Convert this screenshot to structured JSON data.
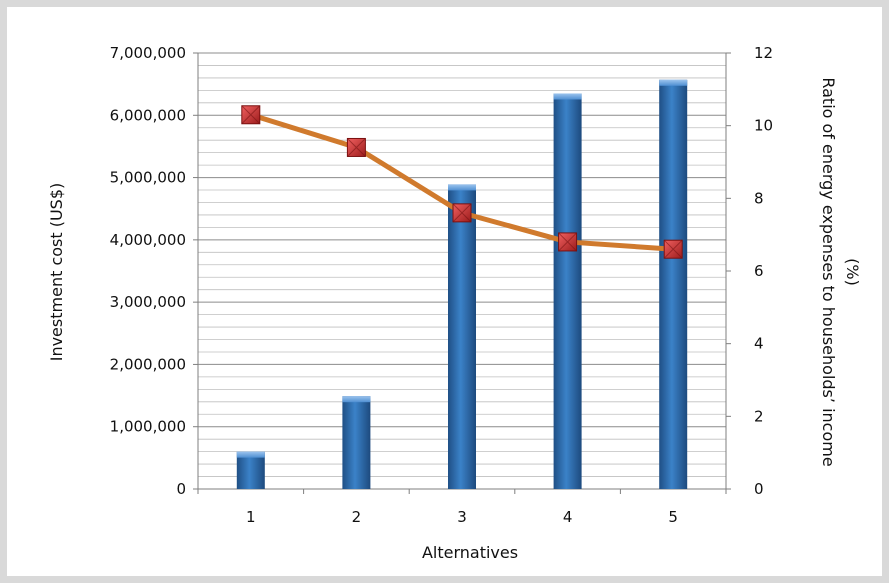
{
  "chart_data": {
    "type": "bar+line",
    "categories": [
      "1",
      "2",
      "3",
      "4",
      "5"
    ],
    "xlabel": "Alternatives",
    "ylabel": "Investment cost (US$)",
    "y2label_line1": "Ratio of energy expenses to households’ income",
    "y2label_line2": "(%)",
    "ylim": [
      0,
      7000000
    ],
    "y2lim": [
      0,
      12
    ],
    "yticks": [
      "0",
      "1,000,000",
      "2,000,000",
      "3,000,000",
      "4,000,000",
      "5,000,000",
      "6,000,000",
      "7,000,000"
    ],
    "y2ticks": [
      "0",
      "2",
      "4",
      "6",
      "8",
      "10",
      "12"
    ],
    "grid": true,
    "series": [
      {
        "type": "bar",
        "axis": "left",
        "values": [
          600000,
          1490000,
          4890000,
          6350000,
          6570000
        ],
        "color": "#2f6fb0"
      },
      {
        "type": "line",
        "axis": "right",
        "values": [
          10.3,
          9.4,
          7.6,
          6.8,
          6.6
        ],
        "color": "#d07a2d",
        "marker_color": "#d32f2f"
      }
    ]
  }
}
